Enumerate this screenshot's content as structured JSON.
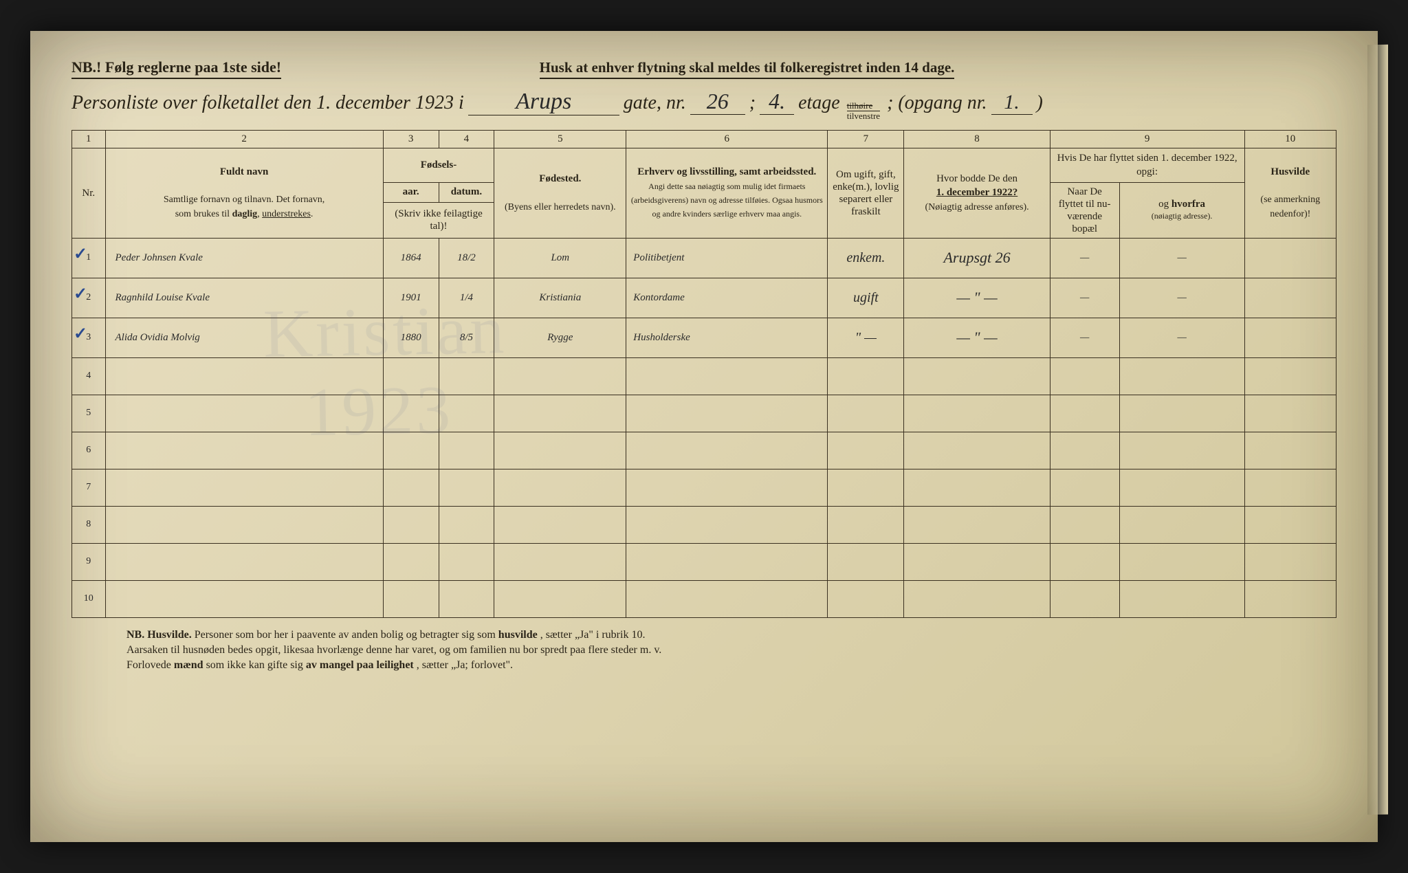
{
  "header": {
    "nb_left": "NB.! Følg reglerne paa 1ste side!",
    "nb_center": "Husk at enhver flytning skal meldes til folkeregistret inden 14 dage.",
    "title_prefix": "Personliste over folketallet den 1. december 1923 i",
    "street_hw": "Arups",
    "gate_label": "gate, nr.",
    "gate_nr": "26",
    "semicolon": ";",
    "etage_nr": "4.",
    "etage_label": "etage",
    "etage_top": "tilhøire",
    "etage_bot": "tilvenstre",
    "opgang_label": "; (opgang nr.",
    "opgang_nr": "1.",
    "close_paren": ")"
  },
  "columns": {
    "nums": [
      "1",
      "2",
      "3",
      "4",
      "5",
      "6",
      "7",
      "8",
      "9",
      "10"
    ],
    "nr": "Nr.",
    "fuldt_navn_title": "Fuldt navn",
    "fuldt_navn_sub": "Samtlige fornavn og tilnavn. Det fornavn, som brukes til daglig, understrekes.",
    "fodsels": "Fødsels-",
    "aar": "aar.",
    "datum": "datum.",
    "skriv_ikke": "(Skriv ikke feilagtige tal)!",
    "fodested": "Fødested.",
    "fodested_sub": "(Byens eller herredets navn).",
    "erhverv_title": "Erhverv og livsstilling, samt arbeidssted.",
    "erhverv_sub": "Angi dette saa nøiagtig som mulig idet firmaets (arbeidsgiverens) navn og adresse tilføies. Ogsaa husmors og andre kvinders særlige erhverv maa angis.",
    "col7": "Om ugift, gift, enke(m.), lovlig separert eller fraskilt",
    "col8_title": "Hvor bodde De den",
    "col8_date": "1. december 1922?",
    "col8_sub": "(Nøiagtig adresse anføres).",
    "col9_title": "Hvis De har flyttet siden 1. december 1922, opgi:",
    "col9a": "Naar De flyttet til nu-værende bopæl",
    "col9b": "og hvorfra (nøiagtig adresse).",
    "col10_title": "Husvilde",
    "col10_sub": "(se anmerkning nedenfor)!"
  },
  "rows": [
    {
      "nr": "1",
      "check": "✓",
      "name": "Peder Johnsen Kvale",
      "year": "1864",
      "date": "18/2",
      "birthplace": "Lom",
      "occupation": "Politibetjent",
      "marital": "enkem.",
      "addr1922": "Arupsgt 26",
      "moved_when": "—",
      "moved_from": "—",
      "husvilde": ""
    },
    {
      "nr": "2",
      "check": "✓",
      "name": "Ragnhild Louise Kvale",
      "year": "1901",
      "date": "1/4",
      "birthplace": "Kristiania",
      "occupation": "Kontordame",
      "marital": "ugift",
      "addr1922": "— \" —",
      "moved_when": "—",
      "moved_from": "—",
      "husvilde": ""
    },
    {
      "nr": "3",
      "check": "✓",
      "name": "Alida Ovidia Molvig",
      "year": "1880",
      "date": "8/5",
      "birthplace": "Rygge",
      "occupation": "Husholderske",
      "marital": "\" —",
      "addr1922": "— \" —",
      "moved_when": "—",
      "moved_from": "—",
      "husvilde": ""
    }
  ],
  "empty_rows": [
    "4",
    "5",
    "6",
    "7",
    "8",
    "9",
    "10"
  ],
  "footer": {
    "line1_pre": "NB. Husvilde.",
    "line1": " Personer som bor her i paavente av anden bolig og betragter sig som ",
    "line1_b": "husvilde",
    "line1_post": ", sætter „Ja\" i rubrik 10.",
    "line2": "Aarsaken til husnøden bedes opgit, likesaa hvorlænge denne har varet, og om familien nu bor spredt paa flere steder m. v.",
    "line3_pre": "Forlovede ",
    "line3_b1": "mænd",
    "line3_mid": " som ikke kan gifte sig ",
    "line3_b2": "av mangel paa leilighet",
    "line3_post": ", sætter „Ja; forlovet\"."
  },
  "colwidths": {
    "c1": 48,
    "c2": 400,
    "c3": 80,
    "c4": 80,
    "c5": 190,
    "c6": 290,
    "c7": 110,
    "c8": 210,
    "c9a": 100,
    "c9b": 180,
    "c10": 132
  },
  "style": {
    "paper_bg": "#e0d6b4",
    "ink": "#2a2418",
    "handwriting_color": "#2a2a2a",
    "check_color": "#2a4a90"
  }
}
